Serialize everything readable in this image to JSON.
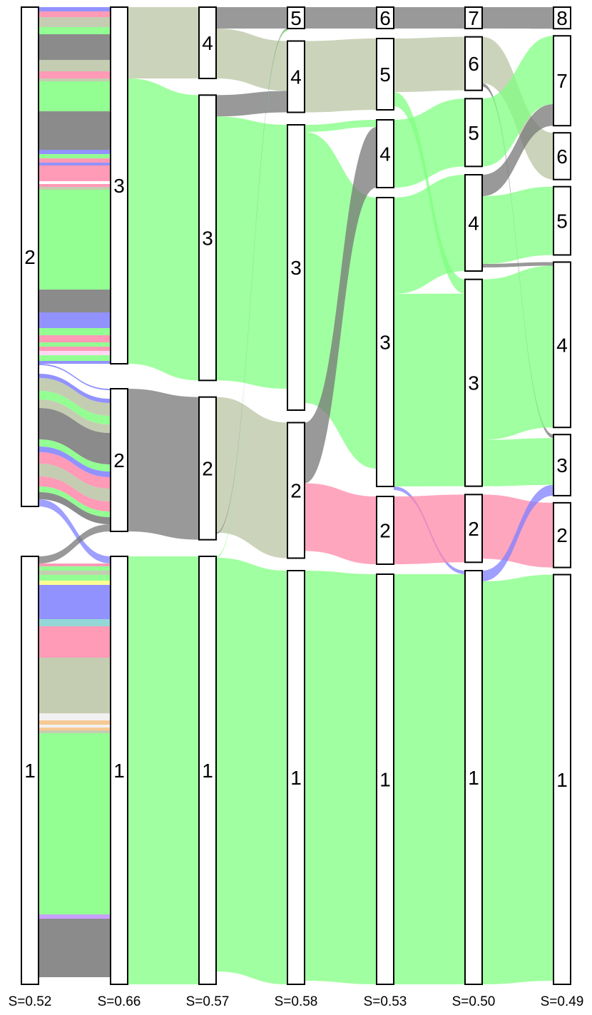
{
  "chart_data": {
    "type": "alluvial",
    "columns": [
      {
        "score_label": "S=0.52",
        "clusters": [
          {
            "label": "2",
            "size": 700,
            "bands": [
              [
                "#7f7fff",
                6
              ],
              [
                "#ff88aa",
                8
              ],
              [
                "#bac4a3",
                14
              ],
              [
                "#80ff80",
                10
              ],
              [
                "#777777",
                36
              ],
              [
                "#bac4a3",
                16
              ],
              [
                "#ff88aa",
                10
              ],
              [
                "#bac4a3",
                4
              ],
              [
                "#80ff80",
                42
              ],
              [
                "#777777",
                54
              ],
              [
                "#7f7fff",
                6
              ],
              [
                "#80ff80",
                6
              ],
              [
                "#ff88aa",
                6
              ],
              [
                "#7f7fff",
                4
              ],
              [
                "#ff88aa",
                22
              ],
              [
                "#ffffff",
                4
              ],
              [
                "#ff88aa",
                4
              ],
              [
                "#bac4a3",
                4
              ],
              [
                "#80ff80",
                140
              ],
              [
                "#777777",
                32
              ],
              [
                "#7f7fff",
                22
              ],
              [
                "#80ff80",
                10
              ],
              [
                "#ff88aa",
                10
              ],
              [
                "#80ff80",
                6
              ],
              [
                "#ff88aa",
                6
              ],
              [
                "#ffd0f0",
                6
              ],
              [
                "#80ff80",
                8
              ],
              [
                "#7f7fff",
                6
              ],
              [
                "#ffffff",
                12
              ],
              [
                "#7f7fff",
                6
              ],
              [
                "#bac4a3",
                18
              ],
              [
                "#80ff80",
                12
              ],
              [
                "#bac4a3",
                12
              ],
              [
                "#777777",
                44
              ],
              [
                "#80ff80",
                10
              ],
              [
                "#7f7fff",
                8
              ],
              [
                "#ff88aa",
                16
              ],
              [
                "#bac4a3",
                18
              ],
              [
                "#ff88aa",
                14
              ],
              [
                "#80ff80",
                8
              ],
              [
                "#777777",
                26
              ],
              [
                "#bac4a3",
                6
              ]
            ]
          },
          {
            "label": "1",
            "size": 600,
            "bands": [
              [
                "#ff88aa",
                4
              ],
              [
                "#80ff80",
                6
              ],
              [
                "#bac4a3",
                6
              ],
              [
                "#80ff80",
                8
              ],
              [
                "#ffff80",
                6
              ],
              [
                "#7f7fff",
                48
              ],
              [
                "#80d0d0",
                10
              ],
              [
                "#ff88aa",
                44
              ],
              [
                "#bac4a3",
                78
              ],
              [
                "#eeeeee",
                10
              ],
              [
                "#f5c080",
                6
              ],
              [
                "#eeeeee",
                4
              ],
              [
                "#f5c080",
                4
              ],
              [
                "#bac4a3",
                4
              ],
              [
                "#80ff80",
                254
              ],
              [
                "#c08fff",
                6
              ],
              [
                "#777777",
                82
              ]
            ]
          }
        ]
      },
      {
        "score_label": "S=0.66",
        "clusters": [
          {
            "label": "3",
            "size": 500
          },
          {
            "label": "2",
            "size": 200
          },
          {
            "label": "1",
            "size": 600
          }
        ]
      },
      {
        "score_label": "S=0.57",
        "clusters": [
          {
            "label": "4",
            "size": 100
          },
          {
            "label": "3",
            "size": 400
          },
          {
            "label": "2",
            "size": 200
          },
          {
            "label": "1",
            "size": 600
          }
        ]
      },
      {
        "score_label": "S=0.58",
        "clusters": [
          {
            "label": "5",
            "size": 30
          },
          {
            "label": "4",
            "size": 100
          },
          {
            "label": "3",
            "size": 400
          },
          {
            "label": "2",
            "size": 190
          },
          {
            "label": "1",
            "size": 580
          }
        ]
      },
      {
        "score_label": "S=0.53",
        "clusters": [
          {
            "label": "6",
            "size": 30
          },
          {
            "label": "5",
            "size": 100
          },
          {
            "label": "4",
            "size": 95
          },
          {
            "label": "3",
            "size": 405
          },
          {
            "label": "2",
            "size": 95
          },
          {
            "label": "1",
            "size": 575
          }
        ]
      },
      {
        "score_label": "S=0.50",
        "clusters": [
          {
            "label": "7",
            "size": 30
          },
          {
            "label": "6",
            "size": 75
          },
          {
            "label": "5",
            "size": 95
          },
          {
            "label": "4",
            "size": 135
          },
          {
            "label": "3",
            "size": 290
          },
          {
            "label": "2",
            "size": 95
          },
          {
            "label": "1",
            "size": 580
          }
        ]
      },
      {
        "score_label": "S=0.49",
        "clusters": [
          {
            "label": "8",
            "size": 30
          },
          {
            "label": "7",
            "size": 125
          },
          {
            "label": "6",
            "size": 65
          },
          {
            "label": "5",
            "size": 95
          },
          {
            "label": "4",
            "size": 230
          },
          {
            "label": "3",
            "size": 85
          },
          {
            "label": "2",
            "size": 90
          },
          {
            "label": "1",
            "size": 570
          }
        ]
      }
    ],
    "flows": [
      {
        "from": [
          0,
          0
        ],
        "to": [
          1,
          0
        ],
        "size": 500,
        "colors": "top"
      },
      {
        "from": [
          0,
          0
        ],
        "to": [
          1,
          1
        ],
        "size": 190,
        "colors": "bottom"
      },
      {
        "from": [
          0,
          0
        ],
        "to": [
          1,
          2
        ],
        "size": 10,
        "color": "#7f7fff"
      },
      {
        "from": [
          0,
          1
        ],
        "to": [
          1,
          1
        ],
        "size": 10,
        "color": "#777777"
      },
      {
        "from": [
          0,
          1
        ],
        "to": [
          1,
          2
        ],
        "size": 590,
        "colors": "all"
      },
      {
        "from": [
          1,
          0
        ],
        "to": [
          2,
          0
        ],
        "size": 100,
        "color": "#bac4a3"
      },
      {
        "from": [
          1,
          0
        ],
        "to": [
          2,
          1
        ],
        "size": 400,
        "color": "#80ff80"
      },
      {
        "from": [
          1,
          1
        ],
        "to": [
          2,
          2
        ],
        "size": 200,
        "color": "#777777"
      },
      {
        "from": [
          1,
          2
        ],
        "to": [
          2,
          3
        ],
        "size": 600,
        "color": "#80ff80"
      },
      {
        "from": [
          2,
          0
        ],
        "to": [
          3,
          0
        ],
        "size": 30,
        "color": "#777777"
      },
      {
        "from": [
          2,
          0
        ],
        "to": [
          3,
          1
        ],
        "size": 70,
        "color": "#bac4a3"
      },
      {
        "from": [
          2,
          1
        ],
        "to": [
          3,
          1
        ],
        "size": 30,
        "color": "#777777"
      },
      {
        "from": [
          2,
          1
        ],
        "to": [
          3,
          2
        ],
        "size": 370,
        "color": "#80ff80"
      },
      {
        "from": [
          2,
          2
        ],
        "to": [
          3,
          3
        ],
        "size": 190,
        "color": "#bac4a3"
      },
      {
        "from": [
          2,
          2
        ],
        "to": [
          3,
          0
        ],
        "size": 2,
        "color": "#777777"
      },
      {
        "from": [
          2,
          3
        ],
        "to": [
          3,
          0
        ],
        "size": 2,
        "color": "#80ff80"
      },
      {
        "from": [
          2,
          3
        ],
        "to": [
          3,
          4
        ],
        "size": 580,
        "color": "#80ff80"
      },
      {
        "from": [
          3,
          0
        ],
        "to": [
          4,
          0
        ],
        "size": 30,
        "color": "#777777"
      },
      {
        "from": [
          3,
          1
        ],
        "to": [
          4,
          1
        ],
        "size": 100,
        "color": "#bac4a3"
      },
      {
        "from": [
          3,
          2
        ],
        "to": [
          4,
          2
        ],
        "size": 10,
        "color": "#80ff80"
      },
      {
        "from": [
          3,
          2
        ],
        "to": [
          4,
          3
        ],
        "size": 380,
        "color": "#80ff80"
      },
      {
        "from": [
          3,
          3
        ],
        "to": [
          4,
          2
        ],
        "size": 85,
        "color": "#777777"
      },
      {
        "from": [
          3,
          3
        ],
        "to": [
          4,
          4
        ],
        "size": 95,
        "color": "#ff88aa"
      },
      {
        "from": [
          3,
          4
        ],
        "to": [
          4,
          5
        ],
        "size": 575,
        "color": "#80ff80"
      },
      {
        "from": [
          4,
          0
        ],
        "to": [
          5,
          0
        ],
        "size": 30,
        "color": "#777777"
      },
      {
        "from": [
          4,
          1
        ],
        "to": [
          5,
          1
        ],
        "size": 75,
        "color": "#bac4a3"
      },
      {
        "from": [
          4,
          1
        ],
        "to": [
          5,
          4
        ],
        "size": 20,
        "color": "#80ff80"
      },
      {
        "from": [
          4,
          2
        ],
        "to": [
          5,
          2
        ],
        "size": 95,
        "color": "#80ff80"
      },
      {
        "from": [
          4,
          3
        ],
        "to": [
          5,
          3
        ],
        "size": 135,
        "color": "#80ff80"
      },
      {
        "from": [
          4,
          3
        ],
        "to": [
          5,
          4
        ],
        "size": 270,
        "color": "#80ff80"
      },
      {
        "from": [
          4,
          3
        ],
        "to": [
          5,
          6
        ],
        "size": 5,
        "color": "#7f7fff"
      },
      {
        "from": [
          4,
          4
        ],
        "to": [
          5,
          5
        ],
        "size": 95,
        "color": "#ff88aa"
      },
      {
        "from": [
          4,
          5
        ],
        "to": [
          5,
          6
        ],
        "size": 575,
        "color": "#80ff80"
      },
      {
        "from": [
          5,
          0
        ],
        "to": [
          6,
          0
        ],
        "size": 30,
        "color": "#777777"
      },
      {
        "from": [
          5,
          1
        ],
        "to": [
          6,
          2
        ],
        "size": 65,
        "color": "#bac4a3"
      },
      {
        "from": [
          5,
          1
        ],
        "to": [
          6,
          5
        ],
        "size": 5,
        "color": "#777777"
      },
      {
        "from": [
          5,
          2
        ],
        "to": [
          6,
          1
        ],
        "size": 95,
        "color": "#80ff80"
      },
      {
        "from": [
          5,
          3
        ],
        "to": [
          6,
          1
        ],
        "size": 30,
        "color": "#777777"
      },
      {
        "from": [
          5,
          3
        ],
        "to": [
          6,
          3
        ],
        "size": 95,
        "color": "#80ff80"
      },
      {
        "from": [
          5,
          3
        ],
        "to": [
          6,
          4
        ],
        "size": 5,
        "color": "#777777"
      },
      {
        "from": [
          5,
          4
        ],
        "to": [
          6,
          4
        ],
        "size": 225,
        "color": "#80ff80"
      },
      {
        "from": [
          5,
          4
        ],
        "to": [
          6,
          5
        ],
        "size": 65,
        "color": "#80ff80"
      },
      {
        "from": [
          5,
          5
        ],
        "to": [
          6,
          6
        ],
        "size": 90,
        "color": "#ff88aa"
      },
      {
        "from": [
          5,
          6
        ],
        "to": [
          6,
          5
        ],
        "size": 15,
        "color": "#7f7fff"
      },
      {
        "from": [
          5,
          6
        ],
        "to": [
          6,
          7
        ],
        "size": 565,
        "color": "#80ff80"
      }
    ]
  }
}
